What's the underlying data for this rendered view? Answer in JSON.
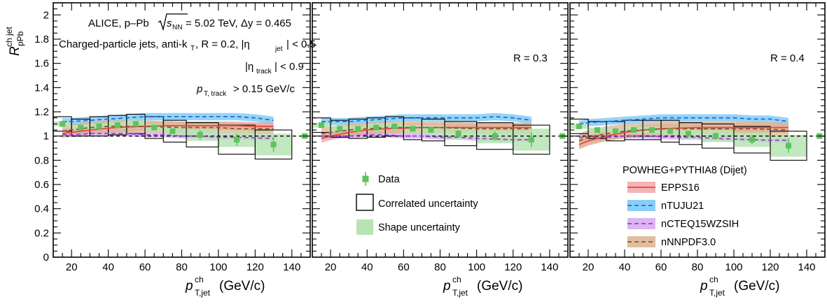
{
  "chart_data": {
    "type": "scatter",
    "ylabel": "R_pPb^ch jet",
    "y_axis": {
      "main": "R",
      "sub": "pPb",
      "sup": "ch jet"
    },
    "x_axis_title": {
      "main": "p",
      "sup": "ch",
      "sub": "T,jet",
      "unit": "(GeV/c)"
    },
    "xlim": [
      10,
      150
    ],
    "ylim": [
      0,
      2.1
    ],
    "y_ticks": [
      "0",
      "0.2",
      "0.4",
      "0.6",
      "0.8",
      "1",
      "1.2",
      "1.4",
      "1.6",
      "1.8",
      "2"
    ],
    "x_ticks": [
      "20",
      "40",
      "60",
      "80",
      "100",
      "120",
      "140"
    ],
    "reference_line": 1.0,
    "annotations": {
      "collab": "ALICE, p–Pb",
      "sqrt": "s",
      "sqrt_sub": "NN",
      "energy": " = 5.02 TeV, Δy = 0.465",
      "jets": "Charged-particle jets, anti-k",
      "jets_sub": "T",
      "jets_r": ", R = 0.2,  |η",
      "jets_eta_sub": "jet",
      "jets_eta_cut": "| < 0.5",
      "eta_track": "|η",
      "eta_track_sub": "track",
      "eta_track_cut": "| < 0.9",
      "pt_track": "p",
      "pt_track_sub": "T, track",
      "pt_track_cut": " > 0.15 GeV/c"
    },
    "panels": [
      {
        "label": "",
        "data": [
          {
            "x": 15,
            "y": 1.1,
            "err": 0.02,
            "corr": 0.06,
            "shape": 0.02
          },
          {
            "x": 25,
            "y": 1.07,
            "err": 0.02,
            "corr": 0.07,
            "shape": 0.02
          },
          {
            "x": 35,
            "y": 1.08,
            "err": 0.02,
            "corr": 0.08,
            "shape": 0.02
          },
          {
            "x": 45,
            "y": 1.09,
            "err": 0.02,
            "corr": 0.08,
            "shape": 0.03
          },
          {
            "x": 55,
            "y": 1.1,
            "err": 0.02,
            "corr": 0.08,
            "shape": 0.03
          },
          {
            "x": 65,
            "y": 1.07,
            "err": 0.02,
            "corr": 0.09,
            "shape": 0.03
          },
          {
            "x": 75,
            "y": 1.04,
            "err": 0.02,
            "corr": 0.09,
            "shape": 0.04
          },
          {
            "x": 90,
            "y": 1.01,
            "err": 0.04,
            "corr": 0.1,
            "shape": 0.05
          },
          {
            "x": 110,
            "y": 0.97,
            "err": 0.05,
            "corr": 0.12,
            "shape": 0.06
          },
          {
            "x": 130,
            "y": 0.93,
            "err": 0.06,
            "corr": 0.12,
            "shape": 0.09
          }
        ],
        "extra_point": {
          "x": 147,
          "y": 1.0
        }
      },
      {
        "label": "R = 0.3",
        "data": [
          {
            "x": 15,
            "y": 1.09,
            "err": 0.02,
            "corr": 0.06,
            "shape": 0.02
          },
          {
            "x": 25,
            "y": 1.06,
            "err": 0.02,
            "corr": 0.07,
            "shape": 0.02
          },
          {
            "x": 35,
            "y": 1.06,
            "err": 0.02,
            "corr": 0.08,
            "shape": 0.02
          },
          {
            "x": 45,
            "y": 1.07,
            "err": 0.02,
            "corr": 0.08,
            "shape": 0.03
          },
          {
            "x": 55,
            "y": 1.08,
            "err": 0.02,
            "corr": 0.08,
            "shape": 0.03
          },
          {
            "x": 65,
            "y": 1.06,
            "err": 0.02,
            "corr": 0.09,
            "shape": 0.03
          },
          {
            "x": 75,
            "y": 1.05,
            "err": 0.02,
            "corr": 0.09,
            "shape": 0.04
          },
          {
            "x": 90,
            "y": 1.02,
            "err": 0.03,
            "corr": 0.1,
            "shape": 0.05
          },
          {
            "x": 110,
            "y": 1.0,
            "err": 0.04,
            "corr": 0.11,
            "shape": 0.06
          },
          {
            "x": 130,
            "y": 0.97,
            "err": 0.06,
            "corr": 0.12,
            "shape": 0.09
          }
        ],
        "extra_point": {
          "x": 147,
          "y": 1.0
        }
      },
      {
        "label": "R = 0.4",
        "data": [
          {
            "x": 15,
            "y": 1.08,
            "err": 0.02,
            "corr": 0.06,
            "shape": 0.02
          },
          {
            "x": 25,
            "y": 1.05,
            "err": 0.02,
            "corr": 0.07,
            "shape": 0.02
          },
          {
            "x": 35,
            "y": 1.04,
            "err": 0.02,
            "corr": 0.08,
            "shape": 0.02
          },
          {
            "x": 45,
            "y": 1.05,
            "err": 0.02,
            "corr": 0.08,
            "shape": 0.03
          },
          {
            "x": 55,
            "y": 1.05,
            "err": 0.02,
            "corr": 0.08,
            "shape": 0.03
          },
          {
            "x": 65,
            "y": 1.04,
            "err": 0.02,
            "corr": 0.09,
            "shape": 0.03
          },
          {
            "x": 75,
            "y": 1.02,
            "err": 0.02,
            "corr": 0.09,
            "shape": 0.04
          },
          {
            "x": 90,
            "y": 1.0,
            "err": 0.03,
            "corr": 0.1,
            "shape": 0.05
          },
          {
            "x": 110,
            "y": 0.97,
            "err": 0.04,
            "corr": 0.11,
            "shape": 0.06
          },
          {
            "x": 130,
            "y": 0.92,
            "err": 0.06,
            "corr": 0.12,
            "shape": 0.09
          }
        ],
        "extra_point": {
          "x": 147,
          "y": 1.0
        }
      }
    ],
    "model_x": [
      15,
      20,
      30,
      40,
      50,
      60,
      70,
      80,
      90,
      100,
      110,
      120,
      130
    ],
    "models": [
      {
        "name": "EPPS16",
        "color": "#e8434a",
        "fill": "#f2a6a8",
        "dash": false,
        "panels": [
          {
            "y": [
              1.02,
              1.03,
              1.05,
              1.065,
              1.075,
              1.08,
              1.085,
              1.085,
              1.085,
              1.085,
              1.085,
              1.08,
              1.08
            ],
            "band": 0.035
          },
          {
            "y": [
              0.98,
              1.0,
              1.03,
              1.05,
              1.06,
              1.065,
              1.07,
              1.07,
              1.07,
              1.07,
              1.07,
              1.07,
              1.07
            ],
            "band": 0.035
          },
          {
            "y": [
              0.93,
              0.96,
              1.0,
              1.03,
              1.05,
              1.06,
              1.065,
              1.07,
              1.07,
              1.07,
              1.07,
              1.07,
              1.07
            ],
            "band": 0.04
          }
        ]
      },
      {
        "name": "nTUJU21",
        "color": "#1d6fe0",
        "fill": "#74c6f2",
        "dash": true,
        "panels": [
          {
            "y": [
              1.12,
              1.12,
              1.13,
              1.14,
              1.15,
              1.16,
              1.16,
              1.16,
              1.16,
              1.16,
              1.16,
              1.15,
              1.13
            ],
            "band": 0.03
          },
          {
            "y": [
              1.12,
              1.12,
              1.12,
              1.13,
              1.14,
              1.15,
              1.15,
              1.15,
              1.15,
              1.15,
              1.16,
              1.15,
              1.13
            ],
            "band": 0.03
          },
          {
            "y": [
              1.1,
              1.11,
              1.12,
              1.13,
              1.14,
              1.15,
              1.15,
              1.15,
              1.15,
              1.15,
              1.14,
              1.14,
              1.12
            ],
            "band": 0.03
          }
        ]
      },
      {
        "name": "nCTEQ15WZSIH",
        "color": "#9b3fd9",
        "fill": "#d6a8f2",
        "dash": true,
        "panels": [
          {
            "y": [
              1.01,
              1.01,
              1.02,
              1.02,
              1.02,
              1.01,
              1.01,
              1.0,
              1.0,
              0.99,
              0.99,
              0.985,
              0.98
            ],
            "band": 0.02
          },
          {
            "y": [
              1.0,
              1.0,
              1.0,
              1.01,
              1.01,
              1.0,
              1.0,
              0.99,
              0.99,
              0.98,
              0.975,
              0.97,
              0.97
            ],
            "band": 0.02
          },
          {
            "y": [
              0.99,
              0.99,
              0.99,
              1.0,
              1.0,
              0.995,
              0.99,
              0.99,
              0.98,
              0.975,
              0.97,
              0.965,
              0.965
            ],
            "band": 0.02
          }
        ]
      },
      {
        "name": "nNNPDF3.0",
        "color": "#8a5a2b",
        "fill": "#d9b48f",
        "dash": true,
        "panels": [
          {
            "y": [
              1.04,
              1.05,
              1.07,
              1.08,
              1.08,
              1.08,
              1.075,
              1.07,
              1.07,
              1.07,
              1.06,
              1.06,
              1.06
            ],
            "band": 0.05
          },
          {
            "y": [
              1.02,
              1.03,
              1.05,
              1.06,
              1.07,
              1.07,
              1.07,
              1.07,
              1.065,
              1.06,
              1.06,
              1.06,
              1.06
            ],
            "band": 0.05
          },
          {
            "y": [
              0.96,
              0.99,
              1.02,
              1.04,
              1.05,
              1.06,
              1.06,
              1.06,
              1.06,
              1.06,
              1.06,
              1.055,
              1.05
            ],
            "band": 0.06
          }
        ]
      }
    ],
    "legend_data": {
      "data_label": "Data",
      "correlated_label": "Correlated uncertainty",
      "shape_label": "Shape uncertainty"
    },
    "legend_models_title": "POWHEG+PYTHIA8 (Dijet)",
    "colors": {
      "data_marker": "#5cc45c",
      "shape_fill": "#b7e4b4",
      "frame": "#000000"
    }
  }
}
